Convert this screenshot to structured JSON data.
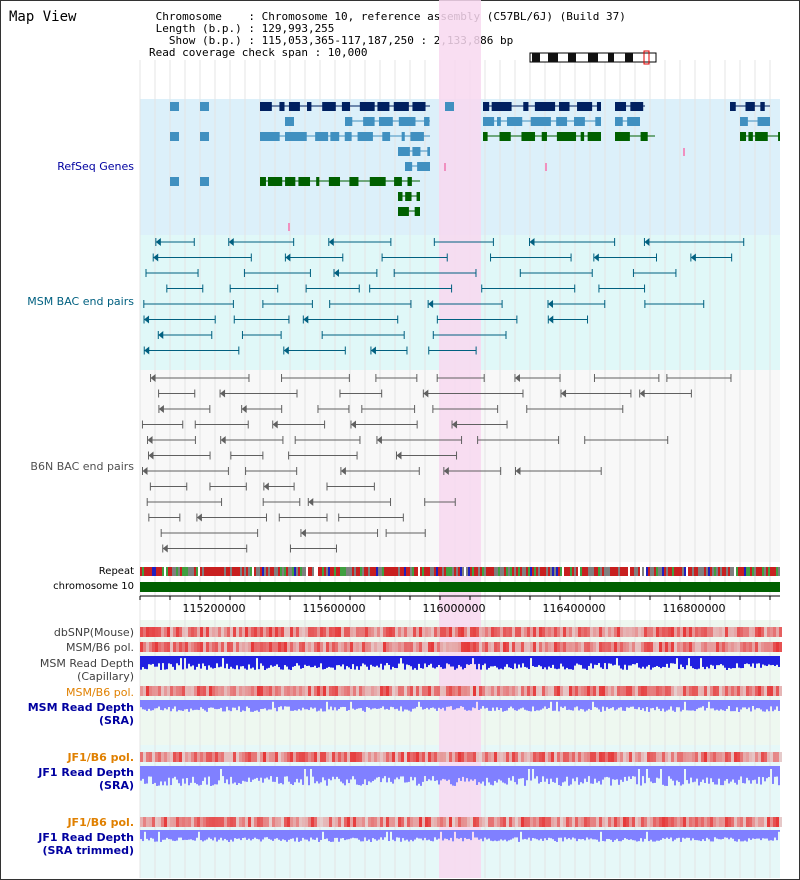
{
  "header": {
    "title": "Map View",
    "info_lines": [
      " Chromosome    : Chromosome 10, reference assembly (C57BL/6J) (Build 37)",
      " Length (b.p.) : 129,993,255",
      "   Show (b.p.) : 115,053,365-117,187,250 : 2,133,886 bp",
      "Read coverage check span : 10,000"
    ]
  },
  "tracks": {
    "refseq": "RefSeq Genes",
    "msm_bac": "MSM BAC end pairs",
    "b6n_bac": "B6N BAC end pairs",
    "repeat": "Repeat",
    "chromosome": "chromosome 10",
    "dbsnp": "dbSNP(Mouse)",
    "msm_b6_pol": "MSM/B6 pol.",
    "msm_depth_cap_1": "MSM Read Depth",
    "msm_depth_cap_2": "(Capillary)",
    "msm_b6_pol_2": "MSM/B6 pol.",
    "msm_depth_sra_1": "MSM Read Depth",
    "msm_depth_sra_2": "(SRA)",
    "jf1_pol": "JF1/B6 pol.",
    "jf1_depth_sra_1": "JF1 Read Depth",
    "jf1_depth_sra_2": "(SRA)",
    "jf1_pol_2": "JF1/B6 pol.",
    "jf1_depth_trim_1": "JF1 Read Depth",
    "jf1_depth_trim_2": "(SRA trimmed)"
  },
  "axis": {
    "ticks": [
      "115200000",
      "115600000",
      "116000000",
      "116400000",
      "116800000"
    ]
  },
  "colors": {
    "refseq_bg": "#dcf0fa",
    "msm_bg": "#e0f8f8",
    "b6n_bg": "#f8f8f8",
    "highlight": "#f8d8f0",
    "gene_dark": "#002060",
    "gene_mid": "#4090c0",
    "gene_green": "#006000",
    "msm_line": "#006080",
    "b6n_line": "#606060",
    "msm_label": "#006080",
    "refseq_label": "#0000a0",
    "orange_label": "#e08000",
    "blue_label": "#0000a0",
    "depth_blue": "#2020e0",
    "depth_light": "#8080ff",
    "pol_red": "#e02020"
  }
}
